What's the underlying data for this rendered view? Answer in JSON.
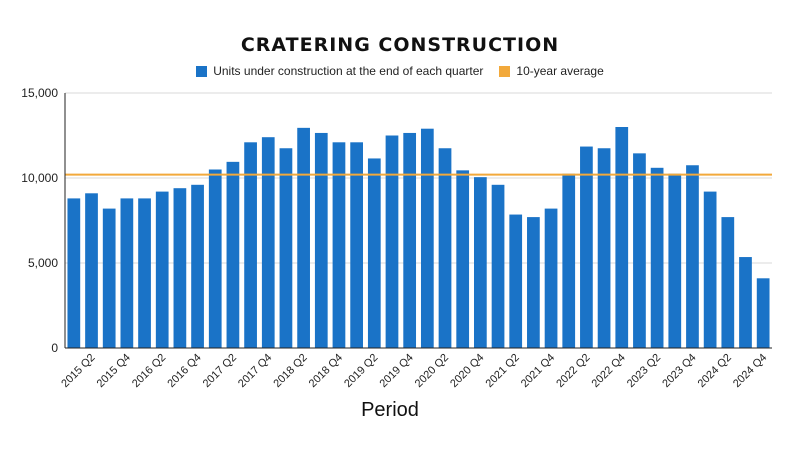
{
  "chart_data": {
    "type": "bar",
    "title": "CRATERING CONSTRUCTION",
    "xlabel": "Period",
    "ylabel": "",
    "ylim": [
      0,
      15000
    ],
    "yticks": [
      0,
      5000,
      10000,
      15000
    ],
    "ytick_labels": [
      "0",
      "5,000",
      "10,000",
      "15,000"
    ],
    "grid": true,
    "legend_position": "top-center",
    "categories": [
      "2015 Q1",
      "2015 Q2",
      "2015 Q3",
      "2015 Q4",
      "2016 Q1",
      "2016 Q2",
      "2016 Q3",
      "2016 Q4",
      "2017 Q1",
      "2017 Q2",
      "2017 Q3",
      "2017 Q4",
      "2018 Q1",
      "2018 Q2",
      "2018 Q3",
      "2018 Q4",
      "2019 Q1",
      "2019 Q2",
      "2019 Q3",
      "2019 Q4",
      "2020 Q1",
      "2020 Q2",
      "2020 Q3",
      "2020 Q4",
      "2021 Q1",
      "2021 Q2",
      "2021 Q3",
      "2021 Q4",
      "2022 Q1",
      "2022 Q2",
      "2022 Q3",
      "2022 Q4",
      "2023 Q1",
      "2023 Q2",
      "2023 Q3",
      "2023 Q4",
      "2024 Q1",
      "2024 Q2",
      "2024 Q3",
      "2024 Q4"
    ],
    "shown_tick_labels": [
      "2015 Q2",
      "2015 Q4",
      "2016 Q2",
      "2016 Q4",
      "2017 Q2",
      "2017 Q4",
      "2018 Q2",
      "2018 Q4",
      "2019 Q2",
      "2019 Q4",
      "2020 Q2",
      "2020 Q4",
      "2021 Q2",
      "2021 Q4",
      "2022 Q2",
      "2022 Q4",
      "2023 Q2",
      "2023 Q4",
      "2024 Q2",
      "2024 Q4"
    ],
    "series": [
      {
        "name": "Units under construction at the end of each quarter",
        "color": "#1a73c7",
        "values": [
          8800,
          9100,
          8200,
          8800,
          8800,
          9200,
          9400,
          9600,
          10500,
          10950,
          12100,
          12400,
          11750,
          12950,
          12650,
          12100,
          12100,
          11150,
          12500,
          12650,
          12900,
          11750,
          10450,
          10050,
          9600,
          7850,
          7700,
          8200,
          10250,
          11850,
          11750,
          13000,
          11450,
          10600,
          10250,
          10750,
          9200,
          7700,
          5350,
          4100
        ]
      }
    ],
    "reference_line": {
      "name": "10-year average",
      "value": 10200,
      "color": "#f2a93b"
    }
  }
}
